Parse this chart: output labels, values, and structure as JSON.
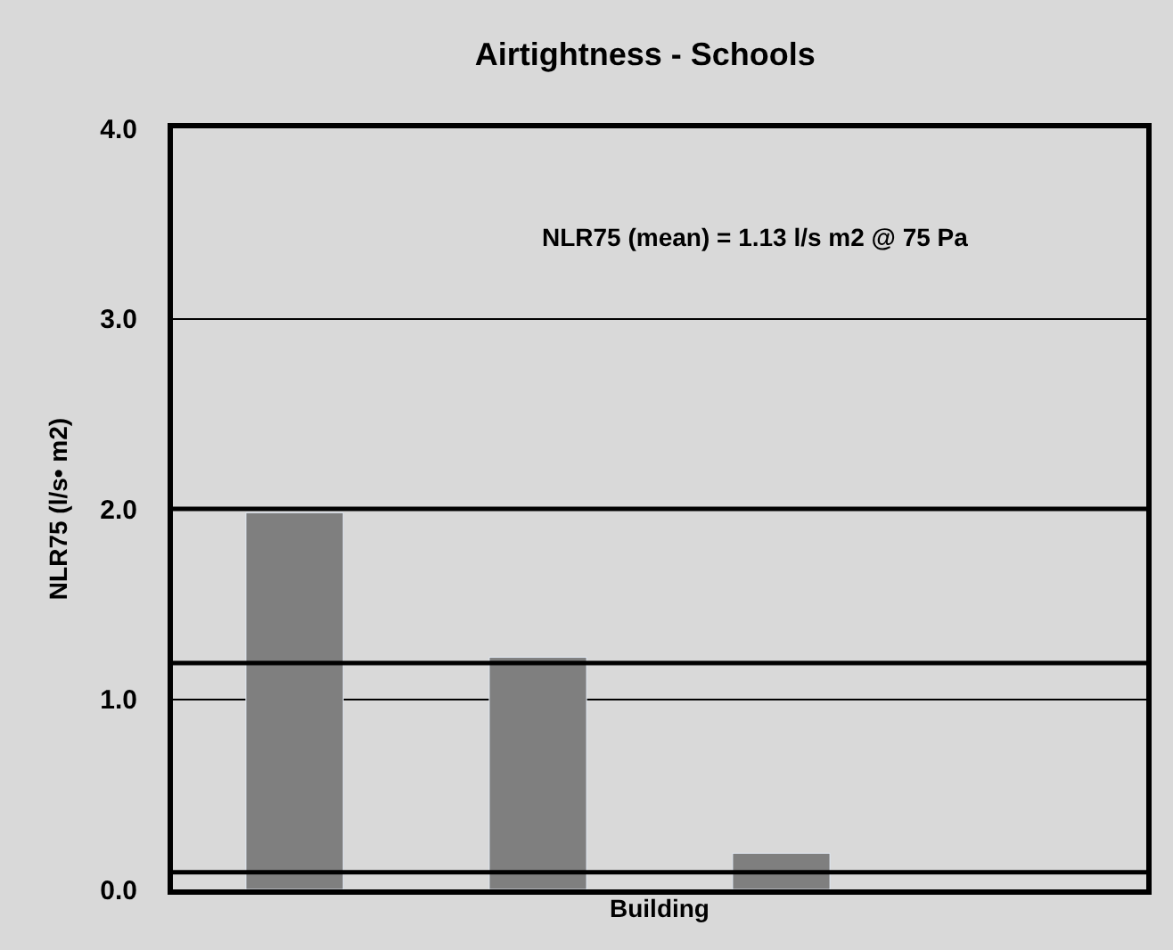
{
  "chart_data": {
    "type": "bar",
    "title": "Airtightness - Schools",
    "xlabel": "Building",
    "ylabel": "NLR75 (l/s• m2)",
    "categories": [
      null,
      null,
      null,
      null
    ],
    "values": [
      1.98,
      1.22,
      0.19,
      null
    ],
    "color": "#7f7f7f",
    "ylim": [
      0,
      4
    ],
    "yticks": [
      {
        "value": 0,
        "label": "0.0"
      },
      {
        "value": 1,
        "label": "1.0"
      },
      {
        "value": 2,
        "label": "2.0"
      },
      {
        "value": 3,
        "label": "3.0"
      },
      {
        "value": 4,
        "label": "4.0"
      }
    ],
    "grid": "y",
    "tick_labels": "y",
    "ref_lines": [
      {
        "axis": "y",
        "value": 2.0,
        "label": null,
        "color": "#000000"
      },
      {
        "axis": "y",
        "value": 1.19,
        "label": null,
        "color": "#000000"
      },
      {
        "axis": "y",
        "value": 0.09,
        "label": null,
        "color": "#000000"
      }
    ],
    "annotations": [
      "NLR75 (mean) = 1.13 l/s m2 @ 75 Pa"
    ]
  }
}
